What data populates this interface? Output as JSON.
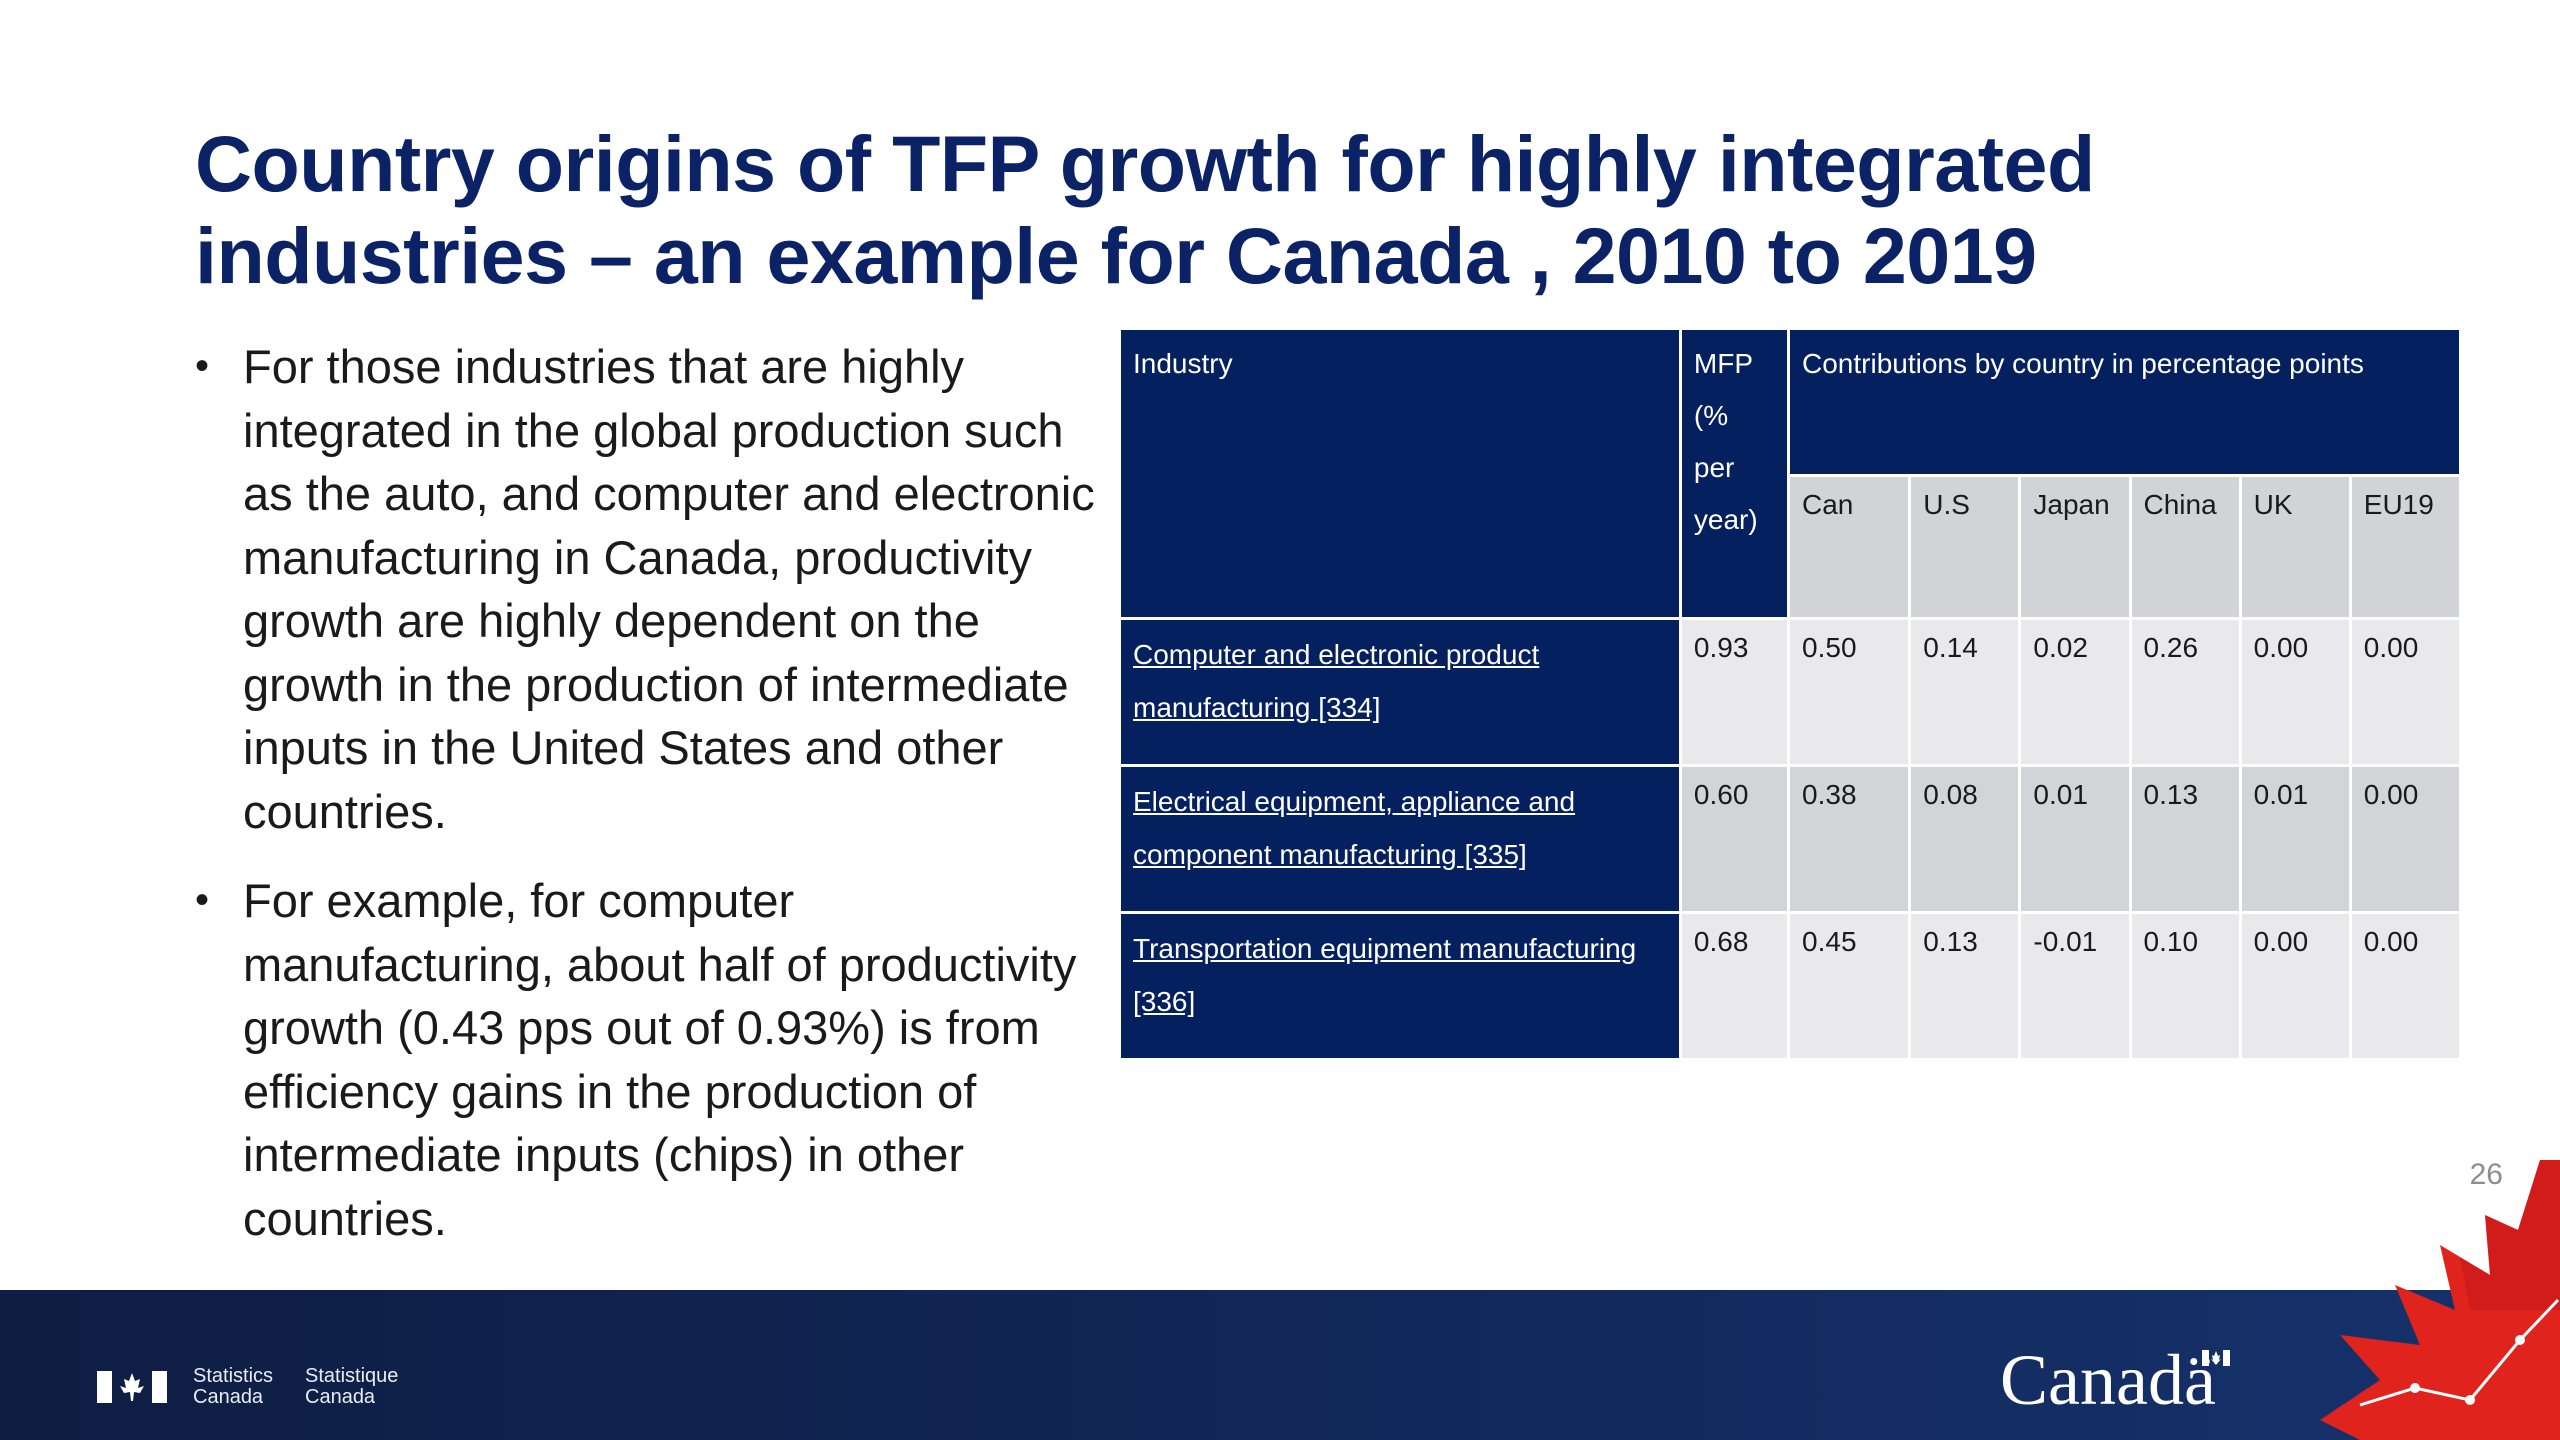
{
  "title": {
    "line1": "Country origins of TFP growth for highly integrated",
    "line2": "industries – an example for Canada , 2010 to 2019"
  },
  "bullets": [
    "For those industries that are highly integrated in the global production such as the auto, and computer and electronic manufacturing in Canada, productivity growth are highly dependent on the growth in the production of intermediate inputs in the United States and other countries.",
    "For example, for computer manufacturing, about half of productivity growth (0.43 pps out of 0.93%) is from efficiency gains in the production of intermediate inputs (chips) in other countries."
  ],
  "table": {
    "header": {
      "industry": "Industry",
      "mfp": "MFP (% per year)",
      "contributions": "Contributions by country in percentage points"
    },
    "countries": [
      "Can",
      "U.S",
      "Japan",
      "China",
      "UK",
      "EU19"
    ],
    "rows": [
      {
        "industry": "Computer and electronic product manufacturing [334]",
        "mfp": "0.93",
        "values": [
          "0.50",
          "0.14",
          "0.02",
          "0.26",
          "0.00",
          "0.00"
        ]
      },
      {
        "industry": "Electrical equipment, appliance and component manufacturing [335]",
        "mfp": "0.60",
        "values": [
          "0.38",
          "0.08",
          "0.01",
          "0.13",
          "0.01",
          "0.00"
        ]
      },
      {
        "industry": "Transportation equipment manufacturing [336]",
        "mfp": "0.68",
        "values": [
          "0.45",
          "0.13",
          "-0.01",
          "0.10",
          "0.00",
          "0.00"
        ]
      }
    ]
  },
  "page_number": "26",
  "footer": {
    "statistics_canada": [
      "Statistics",
      "Canada"
    ],
    "statistique_canada": [
      "Statistique",
      "Canada"
    ],
    "wordmark": "Canadä"
  },
  "colors": {
    "title": "#0b2366",
    "table_header": "#04205f",
    "footer": "#12285a",
    "maple_red": "#e0231d"
  }
}
